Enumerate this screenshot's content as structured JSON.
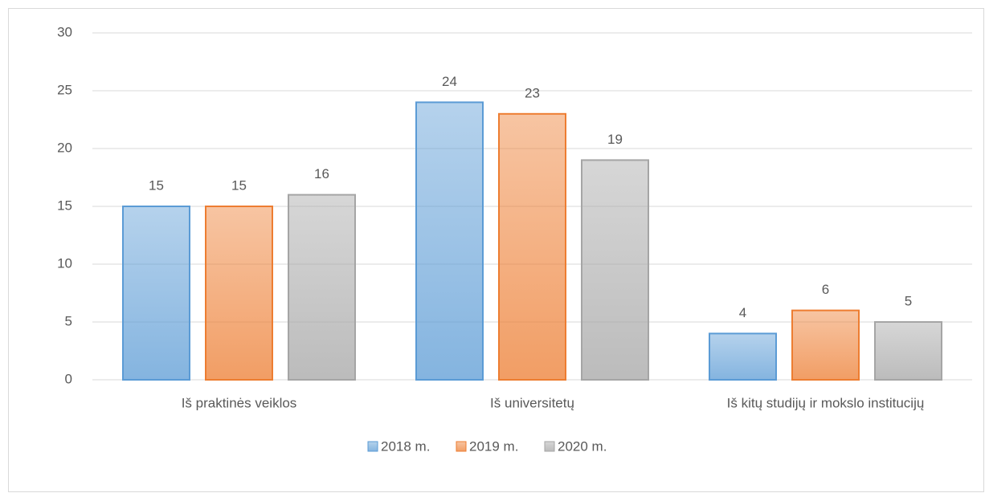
{
  "chart_data": {
    "type": "bar",
    "categories": [
      "Iš praktinės veiklos",
      "Iš universitetų",
      "Iš kitų studijų ir mokslo institucijų"
    ],
    "series": [
      {
        "name": "2018 m.",
        "color": "#5b9bd5",
        "values": [
          15,
          24,
          4
        ]
      },
      {
        "name": "2019 m.",
        "color": "#ed7d31",
        "values": [
          15,
          23,
          6
        ]
      },
      {
        "name": "2020 m.",
        "color": "#a5a5a5",
        "values": [
          16,
          19,
          5
        ]
      }
    ],
    "ylim": [
      0,
      30
    ],
    "yticks": [
      0,
      5,
      10,
      15,
      20,
      25,
      30
    ],
    "grid": true,
    "legend": "bottom"
  }
}
